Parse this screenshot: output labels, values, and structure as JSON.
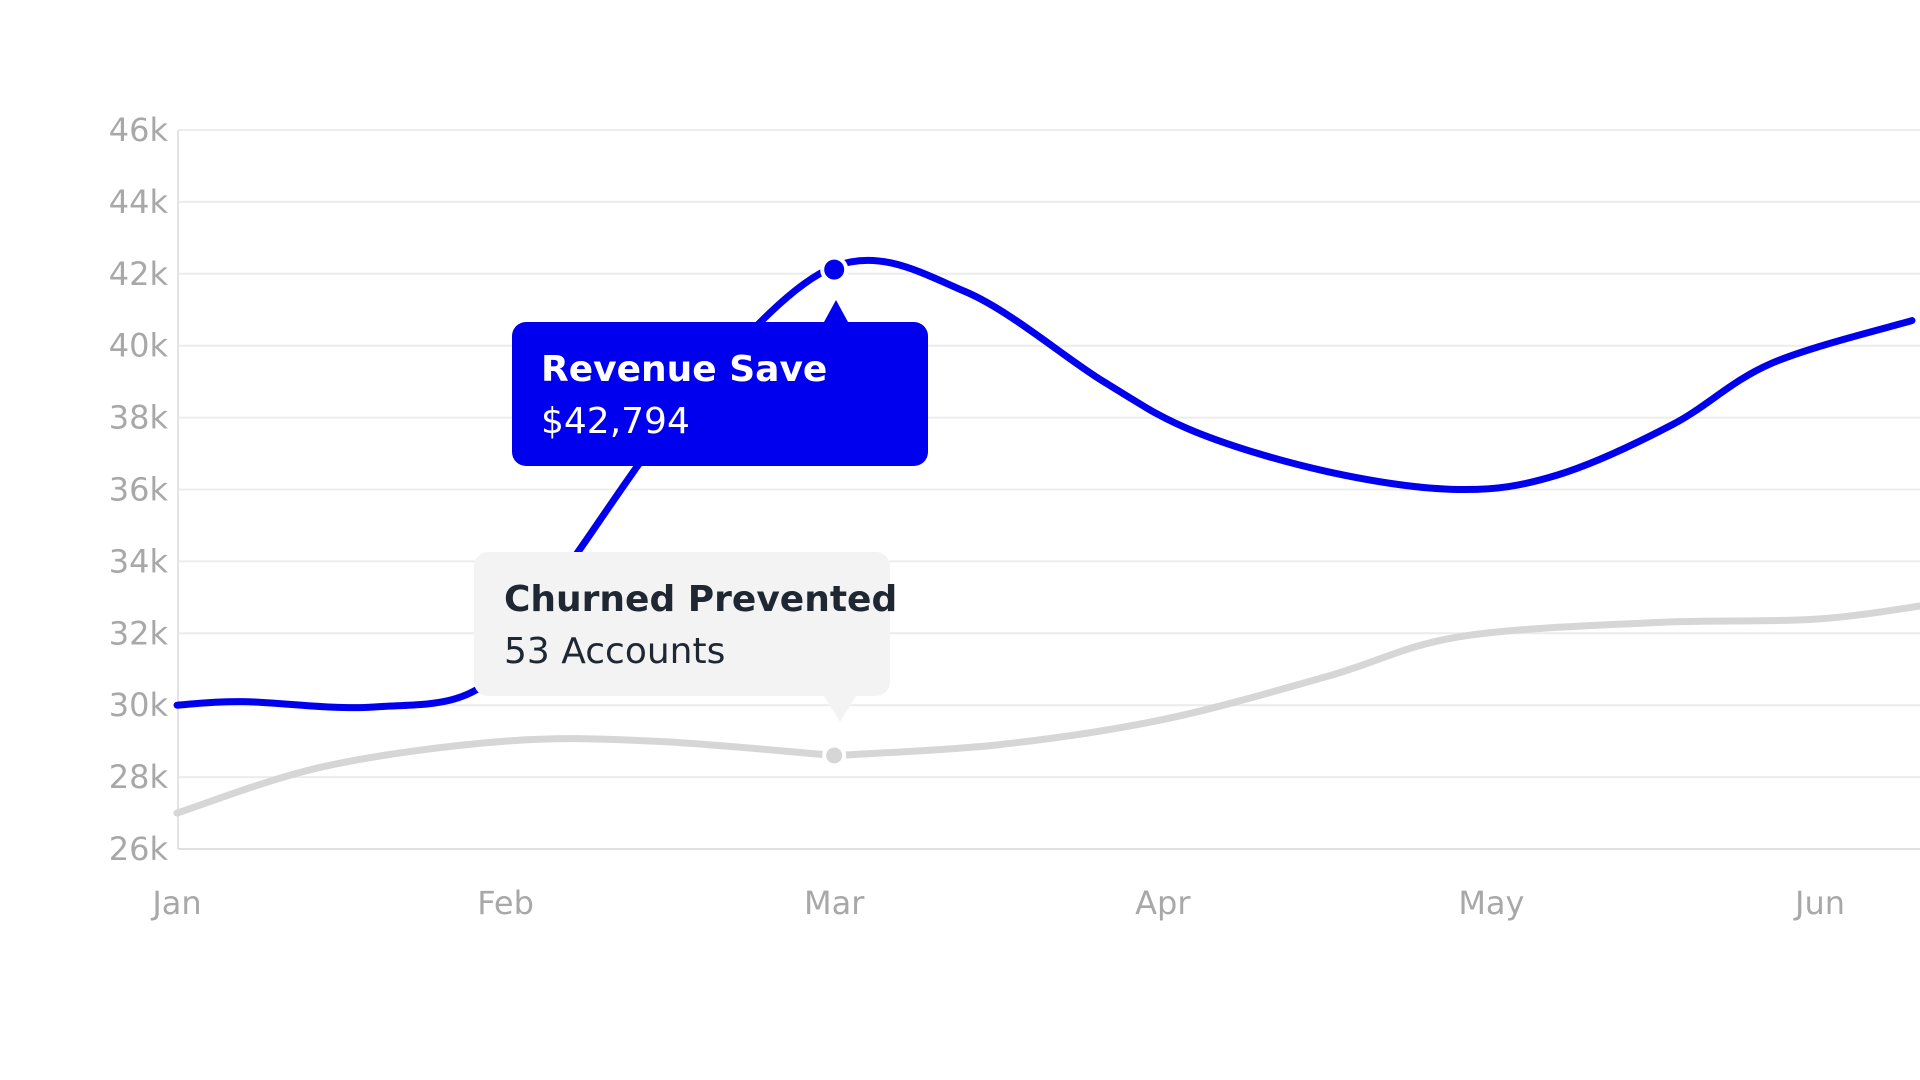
{
  "chart_data": {
    "type": "line",
    "categories": [
      "Jan",
      "Feb",
      "Mar",
      "Apr",
      "May",
      "Jun"
    ],
    "y_ticks": [
      "26k",
      "28k",
      "30k",
      "32k",
      "34k",
      "36k",
      "38k",
      "40k",
      "42k",
      "44k",
      "46k"
    ],
    "ylim": [
      26000,
      46000
    ],
    "grid": true,
    "series": [
      {
        "name": "Revenue Save",
        "color": "#0000ee",
        "points": [
          {
            "x": "Jan",
            "y": 30000
          },
          {
            "x": "Jan",
            "y": 30100
          },
          {
            "x": "Jan",
            "y": 29950
          },
          {
            "x": "Feb",
            "y": 30600
          },
          {
            "x": "Feb",
            "y": 34000
          },
          {
            "x": "Feb",
            "y": 38500
          },
          {
            "x": "Mar",
            "y": 42200
          },
          {
            "x": "Mar",
            "y": 41500
          },
          {
            "x": "Mar",
            "y": 39000
          },
          {
            "x": "Apr",
            "y": 37600
          },
          {
            "x": "Apr",
            "y": 36500
          },
          {
            "x": "May",
            "y": 36000
          },
          {
            "x": "May",
            "y": 36400
          },
          {
            "x": "May",
            "y": 37800
          },
          {
            "x": "Jun",
            "y": 39500
          },
          {
            "x": "Jun",
            "y": 40700
          }
        ]
      },
      {
        "name": "Churned Prevented",
        "color": "#d6d6d6",
        "points": [
          {
            "x": "Jan",
            "y": 27000
          },
          {
            "x": "Jan",
            "y": 28300
          },
          {
            "x": "Feb",
            "y": 29000
          },
          {
            "x": "Feb",
            "y": 29000
          },
          {
            "x": "Mar",
            "y": 28600
          },
          {
            "x": "Mar",
            "y": 28600
          },
          {
            "x": "Mar",
            "y": 28900
          },
          {
            "x": "Apr",
            "y": 29600
          },
          {
            "x": "Apr",
            "y": 30800
          },
          {
            "x": "May",
            "y": 31900
          },
          {
            "x": "May",
            "y": 32300
          },
          {
            "x": "Jun",
            "y": 32400
          },
          {
            "x": "Jun",
            "y": 32900
          }
        ]
      }
    ],
    "tooltips": [
      {
        "title": "Revenue Save",
        "value": "$42,794"
      },
      {
        "title": "Churned Prevented",
        "value": "53 Accounts"
      }
    ]
  }
}
